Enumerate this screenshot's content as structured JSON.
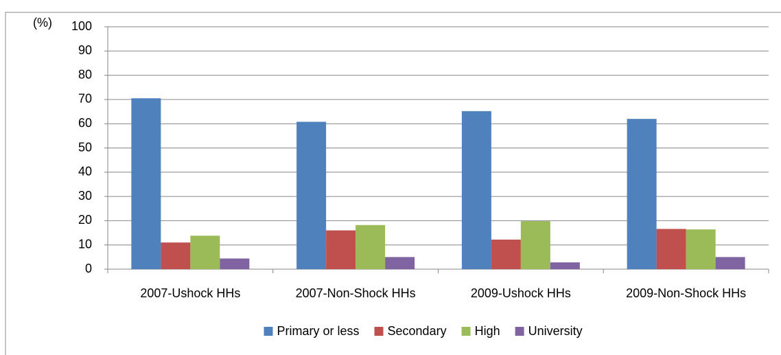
{
  "chart_data": {
    "type": "bar",
    "y_label": "(%)",
    "categories": [
      "2007-Ushock HHs",
      "2007-Non-Shock HHs",
      "2009-Ushock HHs",
      "2009-Non-Shock HHs"
    ],
    "series": [
      {
        "name": "Primary or less",
        "color": "#4f81bd",
        "values": [
          70.5,
          60.8,
          65.2,
          62
        ]
      },
      {
        "name": "Secondary",
        "color": "#c0504d",
        "values": [
          11,
          16,
          12.2,
          16.6
        ]
      },
      {
        "name": "High",
        "color": "#9bbb59",
        "values": [
          13.8,
          18.2,
          19.8,
          16.4
        ]
      },
      {
        "name": "University",
        "color": "#8064a2",
        "values": [
          4.4,
          5,
          2.8,
          5
        ]
      }
    ],
    "ylim": [
      0,
      100
    ],
    "yticks": [
      0,
      10,
      20,
      30,
      40,
      50,
      60,
      70,
      80,
      90,
      100
    ],
    "grid": true,
    "legend": "bottom"
  }
}
